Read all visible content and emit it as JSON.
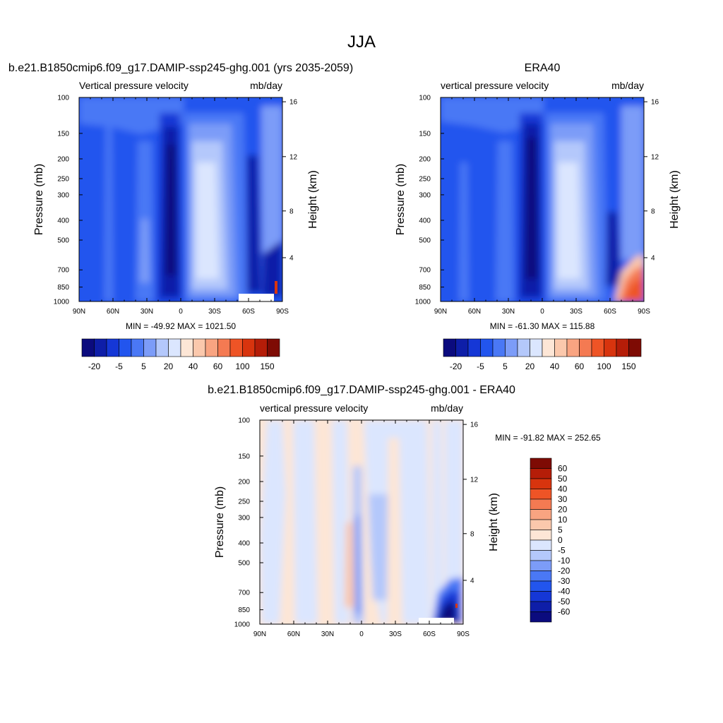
{
  "page_title": "JJA",
  "colors": {
    "panel_scale": [
      "#0b0b7e",
      "#0e1ea8",
      "#1537d6",
      "#2255ee",
      "#4a78f5",
      "#7c9cf8",
      "#b4c8fb",
      "#dbe6fe",
      "#fde6d6",
      "#fbc8ac",
      "#f9a481",
      "#f47a52",
      "#ee5426",
      "#d8340e",
      "#b51d08",
      "#7e0b04"
    ],
    "diff_scale": [
      "#7e0b04",
      "#b51d08",
      "#d8340e",
      "#ee5426",
      "#f47a52",
      "#f9a481",
      "#fbc8ac",
      "#fde6d6",
      "#dbe6fe",
      "#b4c8fb",
      "#7c9cf8",
      "#4a78f5",
      "#2255ee",
      "#1537d6",
      "#0e1ea8",
      "#0b0b7e"
    ],
    "missing": "#ffffff"
  },
  "chart_data": [
    {
      "type": "heatmap",
      "title": "b.e21.B1850cmip6.f09_g17.DAMIP-ssp245-ghg.001 (yrs 2035-2059)",
      "subtitle_left": "Vertical pressure velocity",
      "subtitle_right": "mb/day",
      "ylabel": "Pressure (mb)",
      "ylabel_right": "Height (km)",
      "x_ticks": [
        "90N",
        "60N",
        "30N",
        "0",
        "30S",
        "60S",
        "90S"
      ],
      "y_ticks": [
        "100",
        "150",
        "200",
        "250",
        "300",
        "400",
        "500",
        "700",
        "850",
        "1000"
      ],
      "y_ticks_right": [
        "16",
        "12",
        "8",
        "4"
      ],
      "stats": "MIN = -49.92  MAX = 1021.50",
      "colorbar_labels": [
        "-20",
        "-5",
        "5",
        "20",
        "40",
        "60",
        "100",
        "150"
      ]
    },
    {
      "type": "heatmap",
      "title": "ERA40",
      "subtitle_left": "vertical pressure velocity",
      "subtitle_right": "mb/day",
      "ylabel": "Pressure (mb)",
      "ylabel_right": "Height (km)",
      "x_ticks": [
        "90N",
        "60N",
        "30N",
        "0",
        "30S",
        "60S",
        "90S"
      ],
      "y_ticks": [
        "100",
        "150",
        "200",
        "250",
        "300",
        "400",
        "500",
        "700",
        "850",
        "1000"
      ],
      "y_ticks_right": [
        "16",
        "12",
        "8",
        "4"
      ],
      "stats": "MIN = -61.30  MAX = 115.88",
      "colorbar_labels": [
        "-20",
        "-5",
        "5",
        "20",
        "40",
        "60",
        "100",
        "150"
      ]
    },
    {
      "type": "heatmap",
      "title": "b.e21.B1850cmip6.f09_g17.DAMIP-ssp245-ghg.001 - ERA40",
      "subtitle_left": "vertical pressure velocity",
      "subtitle_right": "mb/day",
      "ylabel": "Pressure (mb)",
      "ylabel_right": "Height (km)",
      "x_ticks": [
        "90N",
        "60N",
        "30N",
        "0",
        "30S",
        "60S",
        "90S"
      ],
      "y_ticks": [
        "100",
        "150",
        "200",
        "250",
        "300",
        "400",
        "500",
        "700",
        "850",
        "1000"
      ],
      "y_ticks_right": [
        "16",
        "12",
        "8",
        "4"
      ],
      "stats": "MIN = -91.82  MAX = 252.65",
      "colorbar_labels": [
        "60",
        "50",
        "40",
        "30",
        "20",
        "10",
        "5",
        "0",
        "-5",
        "-10",
        "-20",
        "-30",
        "-40",
        "-50",
        "-60"
      ]
    }
  ]
}
